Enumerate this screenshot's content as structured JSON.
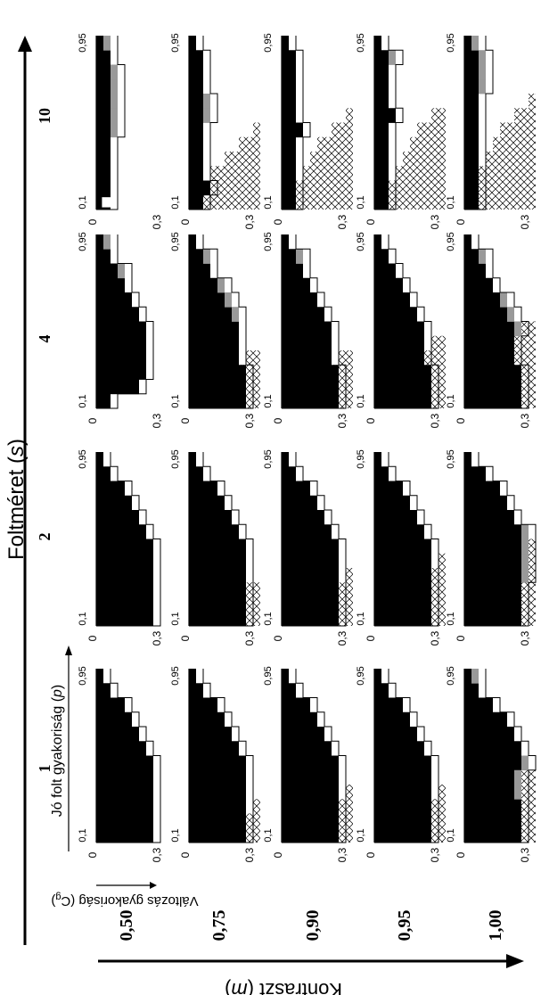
{
  "chart_data": {
    "type": "heatmap",
    "title": "",
    "axes": {
      "s_axis_label": "Foltméret (",
      "s_axis_var": "s",
      "s_axis_close": ")",
      "m_axis_label": "Kontraszt (",
      "m_axis_var": "m",
      "m_axis_close": ")",
      "p_axis_label": "Jó folt gyakoriság (",
      "p_axis_var": "p",
      "p_axis_close": ")",
      "cg_axis_label": "Változás gyakoriság (C",
      "cg_axis_sub": "g",
      "cg_axis_close": ")"
    },
    "s_values": [
      "1",
      "2",
      "4",
      "10"
    ],
    "m_values": [
      "0,50",
      "0,75",
      "0,90",
      "0,95",
      "1,00"
    ],
    "p_ticks": [
      "0,1",
      "0,95"
    ],
    "cg_ticks": [
      "0",
      "0,3"
    ],
    "grid": {
      "p_steps": 12,
      "cg_steps": 10
    },
    "panels": [
      [
        {
          "hatch": [],
          "black": [
            8,
            8,
            8,
            8,
            8,
            8,
            7,
            6,
            5,
            4,
            2,
            1
          ],
          "white_above": [],
          "gray": []
        },
        {
          "hatch": [
            5,
            5,
            1,
            0,
            0,
            0,
            0,
            0,
            0,
            0,
            0,
            0
          ],
          "black": [
            8,
            8,
            8,
            8,
            8,
            8,
            7,
            6,
            5,
            4,
            2,
            1
          ],
          "white_above": [],
          "gray": []
        },
        {
          "hatch": [
            4,
            4,
            2,
            1,
            0,
            0,
            0,
            0,
            0,
            0,
            0,
            0
          ],
          "black": [
            8,
            8,
            8,
            8,
            8,
            8,
            7,
            6,
            5,
            4,
            2,
            1
          ],
          "white_above": [],
          "gray": []
        },
        {
          "hatch": [
            4,
            4,
            2,
            1,
            0,
            0,
            0,
            0,
            0,
            0,
            0,
            0
          ],
          "black": [
            8,
            8,
            8,
            8,
            8,
            8,
            7,
            6,
            5,
            4,
            2,
            1
          ],
          "white_above": [],
          "gray": []
        },
        {
          "hatch": [
            8,
            8,
            6,
            4,
            2,
            0,
            0,
            0,
            0,
            0,
            0,
            0
          ],
          "black": [
            8,
            8,
            8,
            7,
            7,
            8,
            8,
            7,
            6,
            4,
            2,
            1
          ],
          "white_above": [],
          "gray": [
            [
              3,
              1
            ],
            [
              4,
              1
            ],
            [
              5,
              1
            ],
            [
              11,
              1
            ]
          ]
        }
      ],
      [
        {
          "hatch": [],
          "black": [
            8,
            8,
            8,
            8,
            8,
            8,
            7,
            6,
            5,
            4,
            2,
            1
          ],
          "white_above": [],
          "gray": []
        },
        {
          "hatch": [
            8,
            8,
            3,
            0,
            0,
            0,
            0,
            0,
            0,
            0,
            0,
            0
          ],
          "black": [
            8,
            8,
            8,
            8,
            8,
            8,
            7,
            6,
            5,
            4,
            2,
            1
          ],
          "white_above": [],
          "gray": []
        },
        {
          "hatch": [
            4,
            4,
            3,
            1,
            0,
            0,
            0,
            0,
            0,
            0,
            0,
            0
          ],
          "black": [
            8,
            8,
            8,
            8,
            8,
            8,
            7,
            6,
            5,
            4,
            2,
            1
          ],
          "white_above": [],
          "gray": []
        },
        {
          "hatch": [
            8,
            5,
            3,
            2,
            1,
            0,
            0,
            0,
            0,
            0,
            0,
            0
          ],
          "black": [
            8,
            8,
            8,
            8,
            8,
            8,
            7,
            6,
            5,
            4,
            2,
            1
          ],
          "white_above": [],
          "gray": []
        },
        {
          "hatch": [
            8,
            8,
            7,
            5,
            3,
            1,
            0,
            0,
            0,
            0,
            0,
            0
          ],
          "black": [
            8,
            8,
            8,
            8,
            8,
            8,
            8,
            7,
            6,
            5,
            3,
            1
          ],
          "white_above": [],
          "gray": [
            [
              3,
              1
            ],
            [
              4,
              1
            ],
            [
              5,
              1
            ],
            [
              6,
              1
            ]
          ]
        }
      ],
      [
        {
          "hatch": [],
          "black": [
            2,
            6,
            7,
            7,
            7,
            7,
            6,
            5,
            4,
            3,
            2,
            1
          ],
          "white_above": [],
          "gray": [
            [
              9,
              1
            ],
            [
              11,
              1
            ]
          ]
        },
        {
          "hatch": [
            8,
            7,
            4,
            2,
            0,
            0,
            0,
            0,
            0,
            0,
            0,
            0
          ],
          "black": [
            8,
            8,
            8,
            7,
            7,
            7,
            6,
            5,
            4,
            3,
            2,
            1
          ],
          "white_above": [],
          "gray": [
            [
              6,
              1
            ],
            [
              7,
              1
            ],
            [
              8,
              1
            ],
            [
              10,
              1
            ]
          ]
        },
        {
          "hatch": [
            8,
            7,
            4,
            2,
            0,
            0,
            0,
            0,
            0,
            0,
            0,
            0
          ],
          "black": [
            8,
            8,
            8,
            7,
            7,
            7,
            6,
            5,
            4,
            3,
            2,
            1
          ],
          "white_above": [],
          "gray": [
            [
              10,
              1
            ]
          ]
        },
        {
          "hatch": [
            8,
            8,
            6,
            4,
            2,
            0,
            0,
            0,
            0,
            0,
            0,
            0
          ],
          "black": [
            8,
            8,
            8,
            7,
            7,
            7,
            6,
            5,
            4,
            3,
            2,
            1
          ],
          "white_above": [],
          "gray": []
        },
        {
          "hatch": [
            8,
            8,
            8,
            6,
            4,
            2,
            0,
            0,
            0,
            0,
            0,
            0
          ],
          "black": [
            8,
            8,
            8,
            7,
            7,
            7,
            6,
            5,
            4,
            3,
            2,
            1
          ],
          "white_above": [],
          "gray": [
            [
              5,
              1
            ],
            [
              6,
              1
            ],
            [
              7,
              1
            ],
            [
              10,
              1
            ]
          ]
        }
      ],
      [
        {
          "hatch": [],
          "black": [
            2,
            2,
            2,
            2,
            2,
            2,
            2,
            2,
            2,
            2,
            2,
            1
          ],
          "white_above": [
            [
              0,
              1
            ]
          ],
          "gray": [
            [
              5,
              1
            ],
            [
              6,
              1
            ],
            [
              7,
              1
            ],
            [
              8,
              1
            ],
            [
              9,
              1
            ],
            [
              11,
              1
            ]
          ]
        },
        {
          "hatch": [
            8,
            8,
            7,
            5,
            3,
            1,
            0,
            0,
            0,
            0,
            0,
            0
          ],
          "black": [
            2,
            3,
            2,
            2,
            2,
            2,
            2,
            2,
            2,
            2,
            2,
            1
          ],
          "white_above": [],
          "gray": [
            [
              6,
              1
            ],
            [
              7,
              1
            ]
          ]
        },
        {
          "hatch": [
            8,
            8,
            7,
            6,
            5,
            3,
            1,
            0,
            0,
            0,
            0,
            0
          ],
          "black": [
            2,
            2,
            2,
            2,
            2,
            3,
            2,
            2,
            2,
            2,
            2,
            1
          ],
          "white_above": [],
          "gray": []
        },
        {
          "hatch": [
            8,
            8,
            7,
            6,
            5,
            4,
            2,
            0,
            0,
            0,
            0,
            0
          ],
          "black": [
            2,
            2,
            2,
            2,
            2,
            2,
            3,
            2,
            2,
            2,
            2,
            1
          ],
          "white_above": [],
          "gray": [
            [
              10,
              1
            ]
          ]
        },
        {
          "hatch": [
            8,
            8,
            8,
            7,
            6,
            5,
            3,
            1,
            0,
            0,
            0,
            0
          ],
          "black": [
            2,
            2,
            2,
            2,
            2,
            2,
            2,
            2,
            2,
            2,
            2,
            1
          ],
          "white_above": [],
          "gray": [
            [
              8,
              1
            ],
            [
              9,
              1
            ],
            [
              10,
              1
            ],
            [
              11,
              1
            ]
          ]
        }
      ]
    ]
  }
}
